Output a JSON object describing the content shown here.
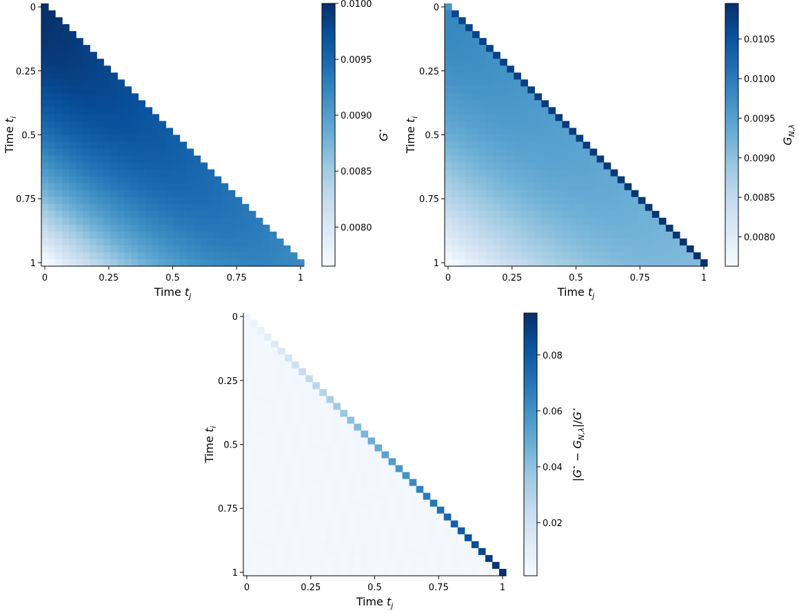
{
  "chart_data": [
    {
      "type": "heatmap",
      "title": "",
      "xlabel_main": "Time",
      "xlabel_sub": "j",
      "ylabel_main": "Time",
      "ylabel_sub": "i",
      "x_ticks": [
        "0",
        "0.25",
        "0.5",
        "0.75",
        "1"
      ],
      "y_ticks": [
        "0",
        "0.25",
        "0.5",
        "0.75",
        "1"
      ],
      "cells": 38,
      "structure": "lower-triangular (j <= i)",
      "value_pattern": "max 0.0100 on the diagonal, decreasing away from it to about 0.00765 at (t_i=1, t_j=0)",
      "colorbar": {
        "label_main": "G",
        "label_sup": "⋆",
        "label_sub": "",
        "vmin": 0.00765,
        "vmax": 0.01,
        "ticks": [
          0.008,
          0.0085,
          0.009,
          0.0095,
          0.01
        ],
        "tick_labels": [
          "0.0080",
          "0.0085",
          "0.0090",
          "0.0095",
          "0.0100"
        ]
      },
      "colormap": "Blues"
    },
    {
      "type": "heatmap",
      "title": "",
      "xlabel_main": "Time",
      "xlabel_sub": "j",
      "ylabel_main": "Time",
      "ylabel_sub": "i",
      "x_ticks": [
        "0",
        "0.25",
        "0.5",
        "0.75",
        "1"
      ],
      "y_ticks": [
        "0",
        "0.25",
        "0.5",
        "0.75",
        "1"
      ],
      "cells": 38,
      "structure": "lower-triangular (j <= i)",
      "value_pattern": "diagonal cells about 0.0105–0.0110; off-diagonal values between about 0.00765 and 0.0100",
      "colorbar": {
        "label_main": "G",
        "label_sup": "",
        "label_sub": "N,λ",
        "vmin": 0.00763,
        "vmax": 0.01095,
        "ticks": [
          0.008,
          0.0085,
          0.009,
          0.0095,
          0.01,
          0.0105
        ],
        "tick_labels": [
          "0.0080",
          "0.0085",
          "0.0090",
          "0.0095",
          "0.0100",
          "0.0105"
        ]
      },
      "colormap": "Blues"
    },
    {
      "type": "heatmap",
      "title": "",
      "xlabel_main": "Time",
      "xlabel_sub": "j",
      "ylabel_main": "Time",
      "ylabel_sub": "i",
      "x_ticks": [
        "0",
        "0.25",
        "0.5",
        "0.75",
        "1"
      ],
      "y_ticks": [
        "0",
        "0.25",
        "0.5",
        "0.75",
        "1"
      ],
      "cells": 38,
      "structure": "lower-triangular (j <= i)",
      "value_pattern": "diagonal rises from about 0.003 at t=0 to about 0.095 at t=1; off-diagonal nearly 0.003",
      "colorbar": {
        "label": "|G⋆ − GN,λ|/G⋆",
        "label_parts": [
          "|",
          "G",
          "⋆",
          " − ",
          "G",
          "N,λ",
          "|/",
          "G",
          "⋆"
        ],
        "vmin": 0.001,
        "vmax": 0.095,
        "ticks": [
          0.02,
          0.04,
          0.06,
          0.08
        ],
        "tick_labels": [
          "0.02",
          "0.04",
          "0.06",
          "0.08"
        ]
      },
      "colormap": "Blues"
    }
  ]
}
